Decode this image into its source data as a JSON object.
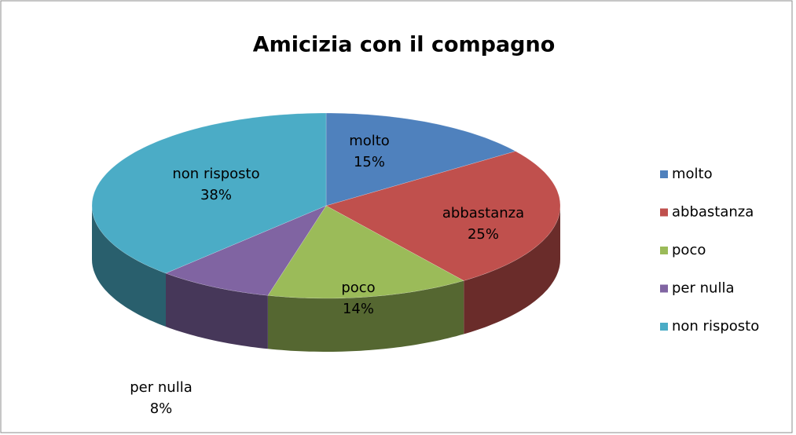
{
  "chart_data": {
    "type": "pie",
    "title": "Amicizia con il compagno",
    "categories": [
      "molto",
      "abbastanza",
      "poco",
      "per nulla",
      "non risposto"
    ],
    "values": [
      15,
      25,
      14,
      8,
      38
    ],
    "value_labels": [
      "15%",
      "25%",
      "14%",
      "8%",
      "38%"
    ],
    "colors": [
      "#4f81bd",
      "#c0504d",
      "#9bbb59",
      "#8064a2",
      "#4bacc6"
    ],
    "legend": "right"
  }
}
